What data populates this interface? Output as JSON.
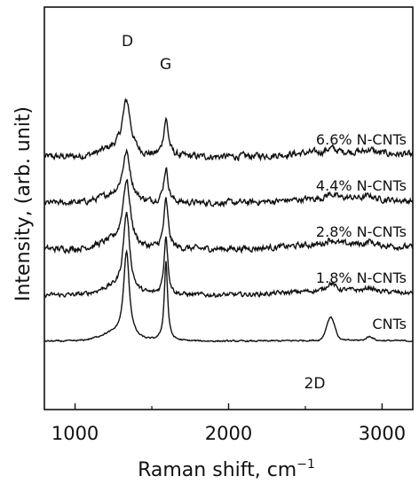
{
  "chart_data": {
    "type": "line",
    "title": "",
    "xlabel": "Raman shift, cm",
    "xlabel_superscript": "−1",
    "ylabel": "Intensity, (arb. unit)",
    "xlim": [
      800,
      3200
    ],
    "xticks": [
      1000,
      2000,
      3000
    ],
    "xtick_labels": [
      "1000",
      "2000",
      "3000"
    ],
    "y_ticks_shown": false,
    "grid": false,
    "legend": "none",
    "line_color": "#111111",
    "annotations": [
      {
        "id": "D",
        "text": "D",
        "x": 1335
      },
      {
        "id": "G",
        "text": "G",
        "x": 1590
      },
      {
        "id": "2D",
        "text": "2D",
        "x": 2665
      }
    ],
    "series": [
      {
        "name": "6.6% N-CNTs",
        "offset": 4,
        "D_height": 0.95,
        "G_height": 0.68,
        "D_width": 65,
        "G_width": 38,
        "D2_height": 0.06,
        "noise": 0.018
      },
      {
        "name": "4.4% N-CNTs",
        "offset": 3,
        "D_height": 0.84,
        "G_height": 0.62,
        "D_width": 62,
        "G_width": 36,
        "D2_height": 0.07,
        "noise": 0.016
      },
      {
        "name": "2.8% N-CNTs",
        "offset": 2,
        "D_height": 1.18,
        "G_height": 0.88,
        "D_width": 58,
        "G_width": 34,
        "D2_height": 0.08,
        "noise": 0.016
      },
      {
        "name": "1.8% N-CNTs",
        "offset": 1,
        "D_height": 1.42,
        "G_height": 1.08,
        "D_width": 50,
        "G_width": 30,
        "D2_height": 0.12,
        "noise": 0.012
      },
      {
        "name": "CNTs",
        "offset": 0,
        "D_height": 1.55,
        "G_height": 1.45,
        "D_width": 45,
        "G_width": 26,
        "D2_height": 0.42,
        "noise": 0.004
      }
    ]
  }
}
